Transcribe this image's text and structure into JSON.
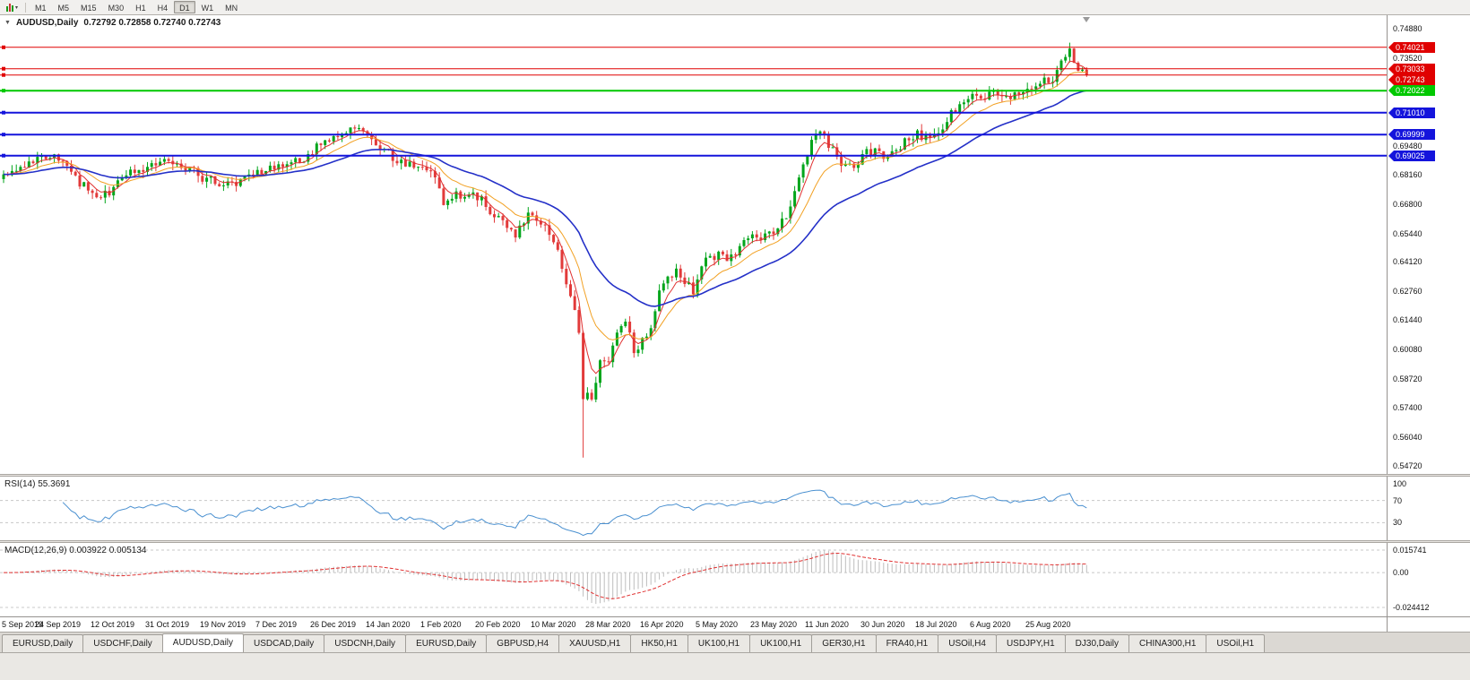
{
  "toolbar": {
    "timeframes": [
      "M1",
      "M5",
      "M15",
      "M30",
      "H1",
      "H4",
      "D1",
      "W1",
      "MN"
    ],
    "active_timeframe": "D1"
  },
  "icons": {
    "chart_menu_caret": "▾",
    "pane_collapse_arrow": "▼"
  },
  "main": {
    "title_symbol": "AUDUSD,Daily",
    "title_ohlc": "0.72792 0.72858 0.72740 0.72743"
  },
  "rsi": {
    "title": "RSI(14) 55.3691",
    "axis_ticks": [
      "100",
      "70",
      "30"
    ]
  },
  "macd": {
    "title": "MACD(12,26,9) 0.003922 0.005134",
    "axis_ticks": [
      "0.015741",
      "0.00",
      "-0.024412"
    ]
  },
  "dates": [
    "5 Sep 2019",
    "24 Sep 2019",
    "12 Oct 2019",
    "31 Oct 2019",
    "19 Nov 2019",
    "7 Dec 2019",
    "26 Dec 2019",
    "14 Jan 2020",
    "1 Feb 2020",
    "20 Feb 2020",
    "10 Mar 2020",
    "28 Mar 2020",
    "16 Apr 2020",
    "5 May 2020",
    "23 May 2020",
    "11 Jun 2020",
    "30 Jun 2020",
    "18 Jul 2020",
    "6 Aug 2020",
    "25 Aug 2020"
  ],
  "tabs": {
    "items": [
      "EURUSD,Daily",
      "USDCHF,Daily",
      "AUDUSD,Daily",
      "USDCAD,Daily",
      "USDCNH,Daily",
      "EURUSD,Daily",
      "GBPUSD,H4",
      "XAUUSD,H1",
      "HK50,H1",
      "UK100,H1",
      "UK100,H1",
      "GER30,H1",
      "FRA40,H1",
      "USOil,H4",
      "USDJPY,H1",
      "DJ30,Daily",
      "CHINA300,H1",
      "USOil,H1"
    ],
    "active_index": 2
  },
  "chart_data": {
    "type": "candlestick",
    "symbol": "AUDUSD",
    "timeframe": "Daily",
    "candle_count": 257,
    "labels_every_n_candles": 13,
    "price_axis": {
      "min": 0.5435,
      "max": 0.755,
      "ticks": [
        "0.74880",
        "0.73520",
        "0.72160",
        "0.70800",
        "0.69480",
        "0.68160",
        "0.66800",
        "0.65440",
        "0.64120",
        "0.62760",
        "0.61440",
        "0.60080",
        "0.58720",
        "0.57400",
        "0.56040",
        "0.54720"
      ]
    },
    "colors": {
      "up": "#00A51B",
      "down": "#E23A3A",
      "background": "#FFFFFF",
      "rsi_line": "#4A90D0",
      "macd_histogram": "#BDBDBD",
      "macd_signal": "#E03030",
      "grid_dash": "#C8C8C8"
    },
    "moving_averages": [
      {
        "period": 5,
        "color": "#E03030",
        "width": 1
      },
      {
        "period": 13,
        "color": "#F2A124",
        "width": 1
      },
      {
        "period": 34,
        "color": "#2430C8",
        "width": 1.6
      }
    ],
    "hlines": [
      {
        "price": 0.74021,
        "label": "0.74021",
        "color": "#E00000",
        "width": 1
      },
      {
        "price": 0.73033,
        "label": "0.73033",
        "color": "#E00000",
        "width": 1
      },
      {
        "price": 0.72743,
        "label": "0.72743",
        "color": "#E00000",
        "width": 1
      },
      {
        "price": 0.72022,
        "label": "0.72022",
        "color": "#00C800",
        "width": 2
      },
      {
        "price": 0.7101,
        "label": "0.71010",
        "color": "#1414DC",
        "width": 2
      },
      {
        "price": 0.69999,
        "label": "0.69999",
        "color": "#1414DC",
        "width": 2
      },
      {
        "price": 0.69025,
        "label": "0.69025",
        "color": "#1414DC",
        "width": 2
      }
    ],
    "close_anchors": [
      [
        0,
        0.68
      ],
      [
        3,
        0.6848
      ],
      [
        6,
        0.6872
      ],
      [
        9,
        0.6892
      ],
      [
        12,
        0.69
      ],
      [
        14,
        0.6862
      ],
      [
        17,
        0.68
      ],
      [
        20,
        0.6742
      ],
      [
        22,
        0.67
      ],
      [
        24,
        0.6722
      ],
      [
        26,
        0.6758
      ],
      [
        29,
        0.6808
      ],
      [
        32,
        0.6842
      ],
      [
        35,
        0.6862
      ],
      [
        38,
        0.6892
      ],
      [
        41,
        0.6872
      ],
      [
        44,
        0.6838
      ],
      [
        47,
        0.6802
      ],
      [
        50,
        0.6782
      ],
      [
        53,
        0.6768
      ],
      [
        56,
        0.6782
      ],
      [
        59,
        0.6818
      ],
      [
        62,
        0.6838
      ],
      [
        65,
        0.6852
      ],
      [
        68,
        0.6868
      ],
      [
        71,
        0.6892
      ],
      [
        74,
        0.6938
      ],
      [
        77,
        0.6978
      ],
      [
        80,
        0.7012
      ],
      [
        83,
        0.7032
      ],
      [
        86,
        0.6992
      ],
      [
        89,
        0.6938
      ],
      [
        92,
        0.6898
      ],
      [
        95,
        0.6862
      ],
      [
        98,
        0.6852
      ],
      [
        101,
        0.6838
      ],
      [
        104,
        0.6695
      ],
      [
        107,
        0.6718
      ],
      [
        110,
        0.6728
      ],
      [
        113,
        0.6702
      ],
      [
        116,
        0.6628
      ],
      [
        119,
        0.6572
      ],
      [
        121,
        0.6542
      ],
      [
        124,
        0.6632
      ],
      [
        127,
        0.6598
      ],
      [
        129,
        0.6528
      ],
      [
        131,
        0.6452
      ],
      [
        133,
        0.6295
      ],
      [
        135,
        0.6175
      ],
      [
        136,
        0.6068
      ],
      [
        137,
        0.5762
      ],
      [
        138,
        0.5815
      ],
      [
        139,
        0.5772
      ],
      [
        140,
        0.5868
      ],
      [
        141,
        0.5948
      ],
      [
        143,
        0.5962
      ],
      [
        145,
        0.6088
      ],
      [
        147,
        0.6128
      ],
      [
        149,
        0.6012
      ],
      [
        151,
        0.6042
      ],
      [
        153,
        0.6112
      ],
      [
        155,
        0.6262
      ],
      [
        157,
        0.6348
      ],
      [
        159,
        0.6362
      ],
      [
        161,
        0.6322
      ],
      [
        163,
        0.6272
      ],
      [
        165,
        0.6392
      ],
      [
        167,
        0.6432
      ],
      [
        169,
        0.6448
      ],
      [
        171,
        0.6422
      ],
      [
        173,
        0.6438
      ],
      [
        175,
        0.6512
      ],
      [
        177,
        0.6548
      ],
      [
        179,
        0.6528
      ],
      [
        181,
        0.6542
      ],
      [
        183,
        0.6562
      ],
      [
        185,
        0.6622
      ],
      [
        187,
        0.6722
      ],
      [
        189,
        0.6882
      ],
      [
        191,
        0.6962
      ],
      [
        192,
        0.7002
      ],
      [
        194,
        0.6988
      ],
      [
        196,
        0.6922
      ],
      [
        198,
        0.6862
      ],
      [
        200,
        0.6848
      ],
      [
        202,
        0.6882
      ],
      [
        204,
        0.6912
      ],
      [
        206,
        0.6932
      ],
      [
        208,
        0.6902
      ],
      [
        210,
        0.6922
      ],
      [
        212,
        0.6952
      ],
      [
        214,
        0.6978
      ],
      [
        216,
        0.7002
      ],
      [
        218,
        0.6988
      ],
      [
        220,
        0.6992
      ],
      [
        222,
        0.7032
      ],
      [
        224,
        0.7102
      ],
      [
        226,
        0.7142
      ],
      [
        228,
        0.7178
      ],
      [
        230,
        0.7198
      ],
      [
        232,
        0.7162
      ],
      [
        234,
        0.7208
      ],
      [
        236,
        0.7182
      ],
      [
        238,
        0.7162
      ],
      [
        240,
        0.7192
      ],
      [
        242,
        0.7222
      ],
      [
        244,
        0.7238
      ],
      [
        246,
        0.7242
      ],
      [
        248,
        0.7262
      ],
      [
        250,
        0.7322
      ],
      [
        251,
        0.7368
      ],
      [
        252,
        0.7388
      ],
      [
        253,
        0.7342
      ],
      [
        254,
        0.7302
      ],
      [
        255,
        0.7282
      ],
      [
        256,
        0.72743
      ]
    ],
    "wick_overrides": [
      {
        "index": 137,
        "low": 0.551
      },
      {
        "index": 252,
        "high": 0.7413
      }
    ],
    "noise": {
      "seed": 20200908,
      "close_amp": 0.0021,
      "wick_amp": 0.003
    },
    "rsi": {
      "period": 14,
      "levels": [
        70,
        30
      ],
      "range": [
        0,
        100
      ],
      "current": 55.3691
    },
    "macd": {
      "fast": 12,
      "slow": 26,
      "signal": 9,
      "range_top": 0.015741,
      "range_bottom": -0.024412,
      "current_macd": 0.003922,
      "current_signal": 0.005134
    }
  }
}
